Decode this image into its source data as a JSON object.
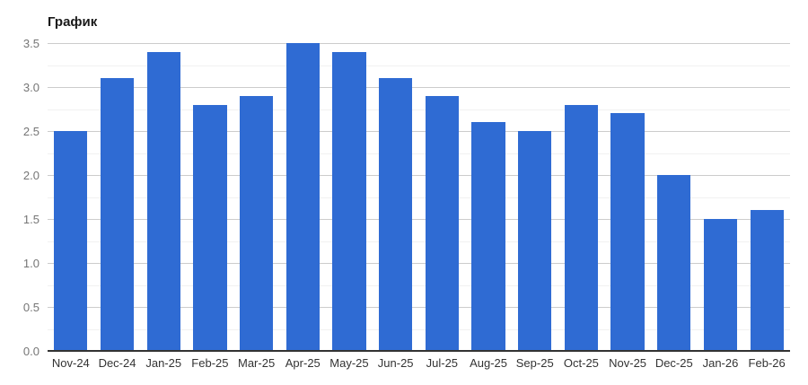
{
  "chart_data": {
    "type": "bar",
    "title": "График",
    "categories": [
      "Nov-24",
      "Dec-24",
      "Jan-25",
      "Feb-25",
      "Mar-25",
      "Apr-25",
      "May-25",
      "Jun-25",
      "Jul-25",
      "Aug-25",
      "Sep-25",
      "Oct-25",
      "Nov-25",
      "Dec-25",
      "Jan-26",
      "Feb-26"
    ],
    "values": [
      2.5,
      3.1,
      3.4,
      2.8,
      2.9,
      3.5,
      3.4,
      3.1,
      2.9,
      2.6,
      2.5,
      2.8,
      2.7,
      2.0,
      1.5,
      1.6
    ],
    "xlabel": "",
    "ylabel": "",
    "ylim": [
      0,
      3.5
    ],
    "y_tick_step": 0.5,
    "y_minor_step": 0.25,
    "y_tick_labels": [
      "0.0",
      "0.5",
      "1.0",
      "1.5",
      "2.0",
      "2.5",
      "3.0",
      "3.5"
    ],
    "grid": "on",
    "legend": "none"
  },
  "colors": {
    "bar": "#2f6bd3",
    "major_gridline": "#cccccc",
    "minor_gridline": "#f1f1f1",
    "baseline": "#333333",
    "y_label_text": "#757575",
    "x_label_text": "#333333",
    "title_text": "#1a1a1a",
    "background": "#ffffff"
  }
}
